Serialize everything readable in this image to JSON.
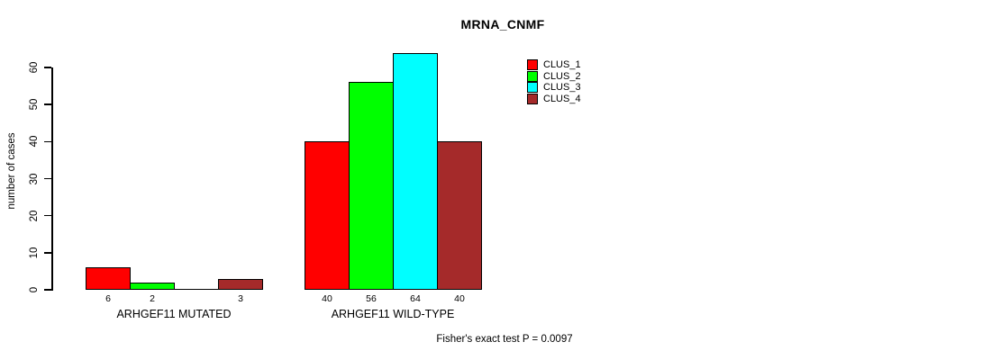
{
  "title": "MRNA_CNMF",
  "y_axis_label": "number of cases",
  "annotation": "Fisher's exact test P = 0.0097",
  "chart_data": {
    "type": "bar",
    "title": "MRNA_CNMF",
    "xlabel": "",
    "ylabel": "number of cases",
    "ylim": [
      0,
      60
    ],
    "yticks": [
      0,
      10,
      20,
      30,
      40,
      50,
      60
    ],
    "grid": false,
    "legend_position": "top-right-inside",
    "series": [
      {
        "name": "CLUS_1",
        "color": "#FF0000"
      },
      {
        "name": "CLUS_2",
        "color": "#00FF00"
      },
      {
        "name": "CLUS_3",
        "color": "#00FFFF"
      },
      {
        "name": "CLUS_4",
        "color": "#A52A2A"
      }
    ],
    "groups": [
      {
        "label": "ARHGEF11 MUTATED",
        "values": [
          6,
          2,
          0,
          3
        ],
        "value_labels": [
          "6",
          "2",
          "",
          "3"
        ]
      },
      {
        "label": "ARHGEF11 WILD-TYPE",
        "values": [
          40,
          56,
          64,
          40
        ],
        "value_labels": [
          "40",
          "56",
          "64",
          "40"
        ]
      }
    ],
    "annotation": "Fisher's exact test P = 0.0097"
  }
}
